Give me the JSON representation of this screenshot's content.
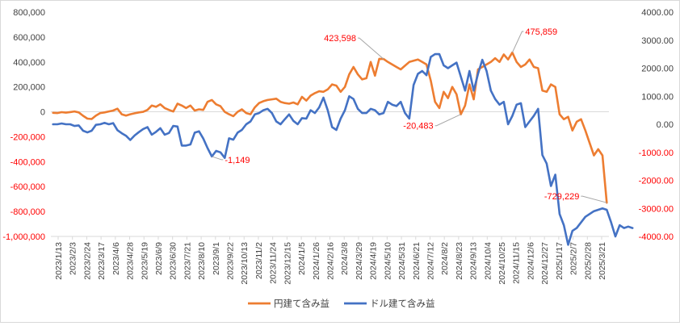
{
  "chart_data": {
    "type": "line",
    "title": "",
    "xlabel": "",
    "ylabel": "",
    "y_left": {
      "lim": [
        -1000000,
        800000
      ],
      "ticks": [
        800000,
        600000,
        400000,
        200000,
        0,
        -200000,
        -400000,
        -600000,
        -800000,
        -1000000
      ],
      "tick_labels": [
        "800,000",
        "600,000",
        "400,000",
        "200,000",
        "0",
        "-200,000",
        "-400,000",
        "-600,000",
        "-800,000",
        "-1,000,000"
      ],
      "negative_color": "#ff0000",
      "positive_color": "#404040"
    },
    "y_right": {
      "lim": [
        -4000,
        4000
      ],
      "ticks": [
        4000,
        3000,
        2000,
        1000,
        0,
        -1000,
        -2000,
        -3000,
        -4000
      ],
      "tick_labels": [
        "4000.00",
        "3000.00",
        "2000.00",
        "1000.00",
        "0.00",
        "-1000.00",
        "-2000.00",
        "-3000.00",
        "-4000.00"
      ],
      "negative_color": "#ff0000",
      "positive_color": "#404040"
    },
    "x_tick_labels": [
      "2023/1/13",
      "2023/2/3",
      "2023/2/24",
      "2023/3/17",
      "2023/4/6",
      "2023/4/28",
      "2023/5/19",
      "2023/6/9",
      "2023/6/30",
      "2023/7/21",
      "2023/8/10",
      "2023/9/1",
      "2023/9/22",
      "2023/10/13",
      "2023/11/2",
      "2023/11/24",
      "2023/12/15",
      "2024/1/5",
      "2024/1/26",
      "2024/2/16",
      "2024/3/8",
      "2024/3/29",
      "2024/4/19",
      "2024/5/10",
      "2024/5/31",
      "2024/6/21",
      "2024/7/12",
      "2024/8/2",
      "2024/8/23",
      "2024/9/13",
      "2024/10/4",
      "2024/10/25",
      "2024/11/15",
      "2024/12/6",
      "2024/12/27",
      "2025/1/17",
      "2025/2/7",
      "2025/2/28",
      "2025/3/21"
    ],
    "series": [
      {
        "name": "円建て含み益",
        "axis": "left",
        "color": "#ed7d31",
        "values": [
          -8000,
          -10000,
          -3000,
          -7000,
          -2000,
          3000,
          -5000,
          -32000,
          -55000,
          -58000,
          -30000,
          -10000,
          -5000,
          3000,
          10000,
          25000,
          -20000,
          -30000,
          -20000,
          -12000,
          -5000,
          0,
          15000,
          50000,
          40000,
          60000,
          30000,
          15000,
          2000,
          65000,
          50000,
          30000,
          50000,
          10000,
          20000,
          15000,
          80000,
          95000,
          60000,
          45000,
          0,
          -20000,
          -35000,
          0,
          20000,
          -10000,
          -20000,
          35000,
          70000,
          85000,
          95000,
          100000,
          105000,
          80000,
          70000,
          65000,
          75000,
          60000,
          120000,
          90000,
          130000,
          150000,
          165000,
          160000,
          180000,
          220000,
          210000,
          160000,
          200000,
          300000,
          360000,
          300000,
          260000,
          270000,
          400000,
          290000,
          425000,
          423598,
          400000,
          380000,
          360000,
          340000,
          370000,
          400000,
          410000,
          420000,
          400000,
          380000,
          250000,
          80000,
          30000,
          160000,
          110000,
          200000,
          140000,
          -20483,
          50000,
          220000,
          100000,
          340000,
          360000,
          380000,
          400000,
          430000,
          400000,
          460000,
          420000,
          475859,
          400000,
          360000,
          380000,
          420000,
          360000,
          350000,
          170000,
          160000,
          220000,
          200000,
          -20000,
          -60000,
          -40000,
          -150000,
          -80000,
          -60000,
          -150000,
          -250000,
          -350000,
          -300000,
          -350000,
          -729229
        ]
      },
      {
        "name": "ドル建て含み益",
        "axis": "right",
        "color": "#4472c4",
        "values": [
          0,
          0,
          30,
          0,
          0,
          -60,
          -40,
          -230,
          -290,
          -230,
          -20,
          0,
          50,
          0,
          40,
          -210,
          -320,
          -410,
          -560,
          -400,
          -280,
          -170,
          -100,
          -370,
          -270,
          -140,
          -370,
          -310,
          -60,
          -80,
          -760,
          -760,
          -720,
          -300,
          -250,
          -510,
          -850,
          -1149,
          -950,
          -1000,
          -1200,
          -500,
          -550,
          -300,
          -200,
          0,
          100,
          350,
          400,
          500,
          550,
          400,
          100,
          0,
          180,
          350,
          120,
          0,
          220,
          200,
          500,
          400,
          600,
          950,
          500,
          -100,
          -200,
          200,
          500,
          1000,
          900,
          550,
          400,
          400,
          550,
          500,
          350,
          400,
          800,
          700,
          650,
          800,
          400,
          200,
          1400,
          1800,
          1900,
          1750,
          2400,
          2500,
          2500,
          2100,
          2000,
          2100,
          2200,
          1700,
          1200,
          1900,
          1200,
          1800,
          2300,
          1900,
          1200,
          900,
          700,
          800,
          0,
          300,
          700,
          750,
          -100,
          100,
          300,
          550,
          -1100,
          -1400,
          -2200,
          -1800,
          -3200,
          -3600,
          -4300,
          -3800,
          -3700,
          -3500,
          -3300,
          -3200,
          -3100,
          -3050,
          -3000,
          -3050,
          -3500,
          -4000,
          -3600,
          -3700,
          -3650,
          -3700
        ]
      }
    ],
    "annotations": [
      {
        "text": "423,598",
        "series": 0,
        "index": 77
      },
      {
        "text": "475,859",
        "series": 0,
        "index": 107
      },
      {
        "text": "-20,483",
        "series": 0,
        "index": 95
      },
      {
        "text": "-1,149",
        "series": 1,
        "index": 37
      },
      {
        "text": "-729,229",
        "series": 0,
        "index": 129
      }
    ],
    "legend": {
      "position": "bottom",
      "items": [
        "円建て含み益",
        "ドル建て含み益"
      ]
    },
    "grid": false
  }
}
